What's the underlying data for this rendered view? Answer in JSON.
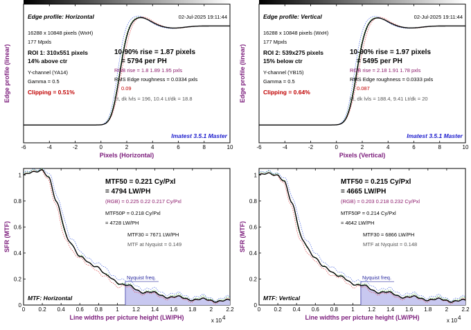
{
  "colors": {
    "curve": "#000000",
    "red": "#e04040",
    "green": "#30a030",
    "blue": "#4060e0",
    "nyquist_fill": "#c8c8f0",
    "axis_label": "#7a1a7a"
  },
  "chart_data": [
    {
      "id": "edge-h",
      "type": "line",
      "title": "Edge profile: Horizontal",
      "date": "02-Jul-2025 19:11:44",
      "xlabel": "Pixels (Horizontal)",
      "ylabel": "Edge profile (linear)",
      "xlim": [
        -6,
        10
      ],
      "xticks": [
        "-6",
        "-4",
        "-2",
        "0",
        "2",
        "4",
        "6",
        "8",
        "10"
      ],
      "info": [
        "16288 x 10848 pixels (WxH)",
        "177 Mpxls"
      ],
      "roi": [
        "ROI 1:  310x551 pixels",
        "14% above ctr"
      ],
      "channel": [
        "Y-channel  (YA14)",
        "Gamma = 0.5"
      ],
      "clipping": "Clipping =  0.51%",
      "rise": "10-90% rise = 1.87 pixels",
      "per_ph": "= 5794 per PH",
      "rgb_rise": "RGB rise = 1.8  1.89  1.95 pxls",
      "roughness": "RMS Edge roughness = 0.0334 pxls",
      "overshoot": 0.09,
      "levels": "Lt, dk lvls = 196, 10.4    Lt/dk = 18.8",
      "version": "Imatest 3.5.1 Master",
      "rise_center": 1.45,
      "rise_width": 0.72
    },
    {
      "id": "edge-v",
      "type": "line",
      "title": "Edge profile: Vertical",
      "date": "02-Jul-2025 19:11:44",
      "xlabel": "Pixels (Vertical)",
      "ylabel": "Edge profile (linear)",
      "xlim": [
        -6,
        10
      ],
      "xticks": [
        "-6",
        "-4",
        "-2",
        "0",
        "2",
        "4",
        "6",
        "8",
        "10"
      ],
      "info": [
        "16288 x 10848 pixels (WxH)",
        "177 Mpxls"
      ],
      "roi": [
        "ROI 2:  539x275 pixels",
        "15% below ctr"
      ],
      "channel": [
        "Y-channel  (YB15)",
        "Gamma = 0.5"
      ],
      "clipping": "Clipping =  0.64%",
      "rise": "10-90% rise = 1.97 pixels",
      "per_ph": "= 5495 per PH",
      "rgb_rise": "RGB rise = 2.18  1.91  1.78 pxls",
      "roughness": "RMS Edge roughness = 0.0333 pxls",
      "overshoot": 0.087,
      "levels": "Lt, dk lvls = 188.4, 9.41    Lt/dk = 20",
      "version": "Imatest 3.5.1 Master",
      "rise_center": 1.55,
      "rise_width": 0.76
    },
    {
      "id": "mtf-h",
      "type": "line",
      "title": "MTF: Horizontal",
      "xlabel": "Line widths per picture height (LW/PH)",
      "ylabel": "SFR (MTF)",
      "xlim": [
        0,
        22000
      ],
      "ylim": [
        0,
        1.05
      ],
      "xticks": [
        "0",
        "0.2",
        "0.4",
        "0.6",
        "0.8",
        "1",
        "1.2",
        "1.4",
        "1.6",
        "1.8",
        "2",
        "2.2"
      ],
      "yticks": [
        "0",
        "0.2",
        "0.4",
        "0.6",
        "0.8",
        "1"
      ],
      "xscale_label": "x 10",
      "xscale_exp": "4",
      "mtf50": "MTF50 = 0.221 Cy/Pxl",
      "mtf50_lw": "= 4794 LW/PH",
      "rgb": "(RGB) = 0.225  0.22  0.217 Cy/Pxl",
      "mtf50p": "MTF50P = 0.218 Cy/Pxl",
      "mtf50p_lw": "= 4728 LW/PH",
      "mtf30": "MTF30 = 7671 LW/PH",
      "nyq_text": "MTF at Nyquist = 0.149",
      "nyquist_label": "Nyquist freq.",
      "nyquist_x": 10848,
      "x": [
        0,
        1000,
        2000,
        2700,
        3500,
        4794,
        6000,
        7671,
        9000,
        10848,
        13000,
        16000,
        19000,
        22000
      ],
      "y": [
        1.0,
        1.02,
        1.04,
        0.98,
        0.79,
        0.5,
        0.37,
        0.3,
        0.22,
        0.149,
        0.1,
        0.06,
        0.04,
        0.03
      ]
    },
    {
      "id": "mtf-v",
      "type": "line",
      "title": "MTF: Vertical",
      "xlabel": "Line widths per picture height (LW/PH)",
      "ylabel": "SFR (MTF)",
      "xlim": [
        0,
        22000
      ],
      "ylim": [
        0,
        1.05
      ],
      "xticks": [
        "0",
        "0.2",
        "0.4",
        "0.6",
        "0.8",
        "1",
        "1.2",
        "1.4",
        "1.6",
        "1.8",
        "2",
        "2.2"
      ],
      "yticks": [
        "0",
        "0.2",
        "0.4",
        "0.6",
        "0.8",
        "1"
      ],
      "xscale_label": "x 10",
      "xscale_exp": "4",
      "mtf50": "MTF50 = 0.215 Cy/Pxl",
      "mtf50_lw": "= 4665 LW/PH",
      "rgb": "(RGB) = 0.203  0.218  0.232 Cy/Pxl",
      "mtf50p": "MTF50P = 0.214 Cy/Pxl",
      "mtf50p_lw": "= 4642 LW/PH",
      "mtf30": "MTF30 = 6866 LW/PH",
      "nyq_text": "MTF at Nyquist = 0.148",
      "nyquist_label": "Nyquist freq.",
      "nyquist_x": 10848,
      "x": [
        0,
        1000,
        2000,
        2700,
        3500,
        4665,
        5800,
        6866,
        8500,
        10848,
        13000,
        16000,
        19000,
        22000
      ],
      "y": [
        1.0,
        1.01,
        1.0,
        0.95,
        0.78,
        0.5,
        0.37,
        0.3,
        0.22,
        0.148,
        0.1,
        0.06,
        0.04,
        0.03
      ]
    }
  ]
}
